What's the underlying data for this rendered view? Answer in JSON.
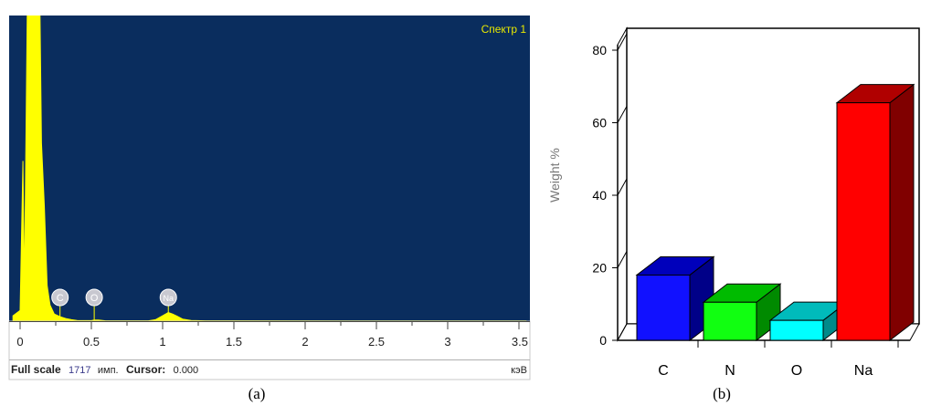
{
  "panels": {
    "a": {
      "caption": "(a)"
    },
    "b": {
      "caption": "(b)"
    }
  },
  "spectrum": {
    "tag": "Спектр 1",
    "footer": {
      "label": "Full scale",
      "count": "1717",
      "unit": "имп.",
      "cursor_label": "Cursor:",
      "cursor_value": "0.000",
      "energy_unit": "кэВ"
    },
    "colors": {
      "background": "#0a2d5e",
      "trace": "#ffff00",
      "marker": "#c8c8d0"
    }
  },
  "chart_data": [
    {
      "type": "area",
      "x_ticks": [
        "0",
        "0.5",
        "1",
        "1.5",
        "2",
        "2.5",
        "3",
        "3.5"
      ],
      "xlim": [
        -0.05,
        3.55
      ],
      "ylim": [
        0,
        1717
      ],
      "series": [
        {
          "x": [
            -0.05,
            0.0,
            0.02,
            0.03,
            0.05,
            0.06,
            0.08,
            0.1,
            0.12,
            0.14,
            0.15,
            0.17,
            0.19,
            0.21,
            0.24,
            0.28,
            0.32,
            0.36,
            0.4,
            0.5,
            0.52,
            0.55,
            0.6,
            0.9,
            0.95,
            1.0,
            1.04,
            1.07,
            1.1,
            1.14,
            1.2,
            1.3,
            3.55
          ],
          "y": [
            30,
            60,
            900,
            170,
            1717,
            1717,
            1717,
            1717,
            1717,
            1717,
            1000,
            650,
            200,
            90,
            40,
            25,
            15,
            8,
            4,
            3,
            6,
            6,
            2,
            2,
            8,
            30,
            48,
            40,
            28,
            12,
            4,
            2,
            1
          ]
        }
      ],
      "peak_labels": [
        {
          "label": "C",
          "x": 0.28
        },
        {
          "label": "O",
          "x": 0.52
        },
        {
          "label": "Na",
          "x": 1.04
        }
      ]
    },
    {
      "type": "bar",
      "categories": [
        "C",
        "N",
        "O",
        "Na"
      ],
      "values": [
        18,
        10.5,
        5.5,
        65.5
      ],
      "ylabel": "Weight %",
      "ylim": [
        0,
        80
      ],
      "y_ticks": [
        0,
        20,
        40,
        60,
        80
      ],
      "colors": {
        "C": {
          "front": "#1111ff",
          "side": "#000088",
          "top": "#0000bb"
        },
        "N": {
          "front": "#11ff11",
          "side": "#008a00",
          "top": "#00bb00"
        },
        "O": {
          "front": "#00ffff",
          "side": "#008a8a",
          "top": "#00bbbb"
        },
        "Na": {
          "front": "#ff0000",
          "side": "#800000",
          "top": "#b00000"
        }
      }
    }
  ]
}
